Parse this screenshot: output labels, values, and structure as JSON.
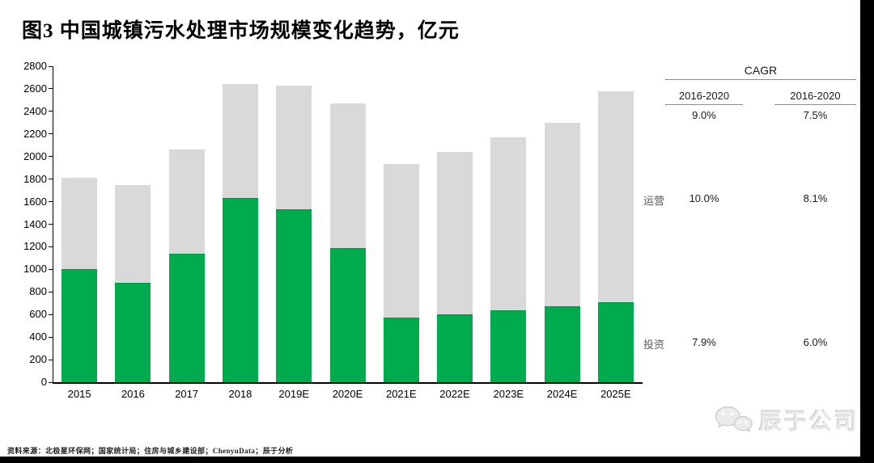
{
  "page": {
    "title": "图3 中国城镇污水处理市场规模变化趋势，亿元",
    "source_note": "资料来源：北极星环保网；国家统计局；住房与城乡建设部；ChenyuData；辰于分析",
    "logo_text": "辰于公司",
    "logo_icon": "wechat-chat-bubbles-icon"
  },
  "chart_data": {
    "type": "bar",
    "stacked": true,
    "title": "中国城镇污水处理市场规模变化趋势",
    "unit": "亿元",
    "categories": [
      "2015",
      "2016",
      "2017",
      "2018",
      "2019E",
      "2020E",
      "2021E",
      "2022E",
      "2023E",
      "2024E",
      "2025E"
    ],
    "series": [
      {
        "name": "投资",
        "color": "#00AB4E",
        "values": [
          1000,
          880,
          1140,
          1630,
          1530,
          1190,
          570,
          600,
          640,
          670,
          710
        ]
      },
      {
        "name": "运营",
        "color": "#D9D9D9",
        "values": [
          810,
          870,
          920,
          1010,
          1100,
          1280,
          1360,
          1440,
          1530,
          1630,
          1870
        ]
      }
    ],
    "totals": [
      1810,
      1750,
      2060,
      2640,
      2630,
      2470,
      1930,
      2040,
      2170,
      2300,
      2580
    ],
    "ylim": [
      0,
      2800
    ],
    "ytick_step": 200,
    "yticks": [
      0,
      200,
      400,
      600,
      800,
      1000,
      1200,
      1400,
      1600,
      1800,
      2000,
      2200,
      2400,
      2600,
      2800
    ],
    "grid": false,
    "legend_position": "right-row-labels"
  },
  "cagr": {
    "title": "CAGR",
    "col_headers": [
      "2016-2020",
      "2016-2020"
    ],
    "rows": [
      {
        "label": "",
        "col1": "9.0%",
        "col2": "7.5%"
      },
      {
        "label": "运营",
        "col1": "10.0%",
        "col2": "8.1%"
      },
      {
        "label": "投资",
        "col1": "7.9%",
        "col2": "6.0%"
      }
    ]
  },
  "colors": {
    "investment_green": "#00AB4E",
    "operation_gray": "#D9D9D9",
    "axis_black": "#000000",
    "divider_gray": "#8c8c8c"
  }
}
